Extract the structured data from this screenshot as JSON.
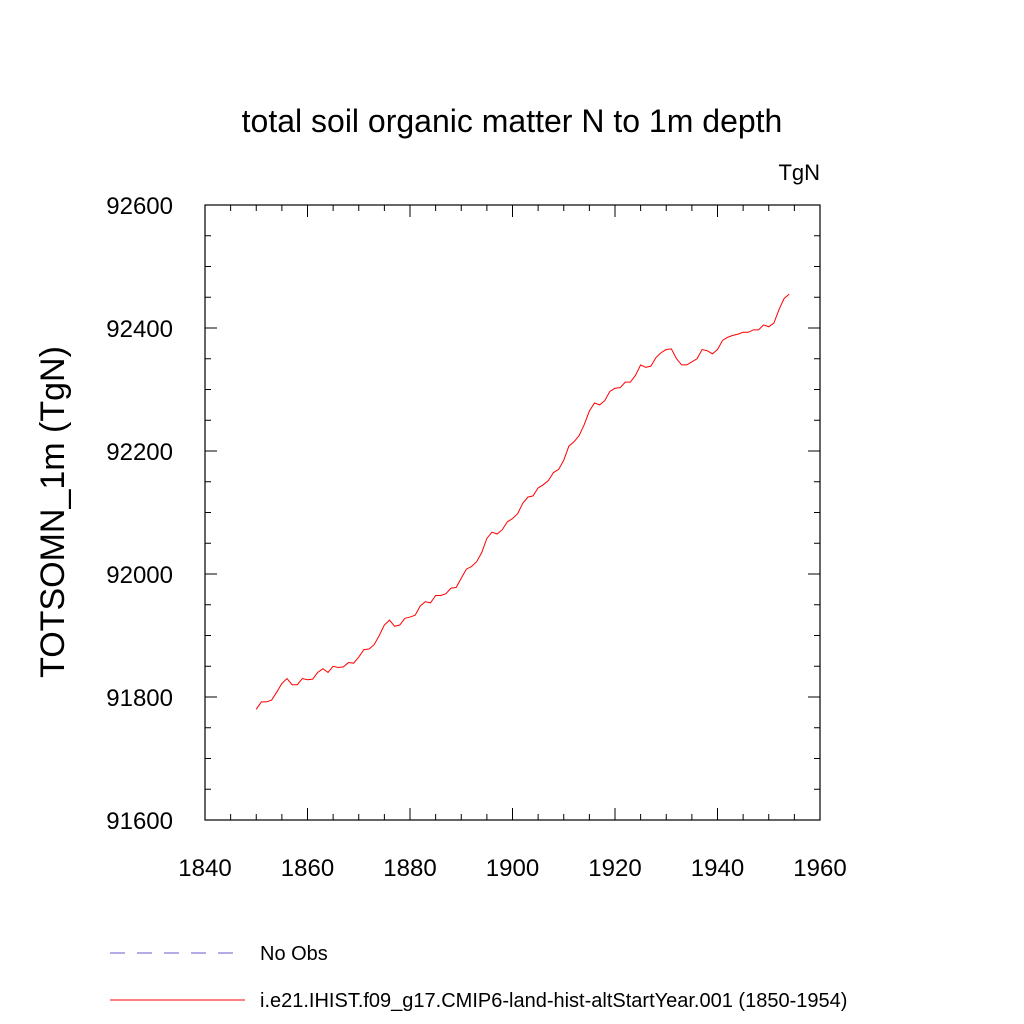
{
  "chart_data": {
    "type": "line",
    "title": "total soil organic matter N to 1m depth",
    "units": "TgN",
    "xlabel": "",
    "ylabel": "TOTSOMN_1m  (TgN)",
    "xlim": [
      1840,
      1960
    ],
    "ylim": [
      91600,
      92600
    ],
    "xticks": [
      1840,
      1860,
      1880,
      1900,
      1920,
      1940,
      1960
    ],
    "yticks": [
      91600,
      91800,
      92000,
      92200,
      92400,
      92600
    ],
    "grid": false,
    "legend_position": "bottom",
    "series": [
      {
        "name": "No Obs",
        "color": "#6a5acd",
        "style": "dashed",
        "x": [],
        "y": []
      },
      {
        "name": "i.e21.IHIST.f09_g17.CMIP6-land-hist-altStartYear.001 (1850-1954)",
        "color": "#ff0000",
        "style": "solid",
        "x": [
          1850,
          1851,
          1852,
          1853,
          1854,
          1855,
          1856,
          1857,
          1858,
          1859,
          1860,
          1861,
          1862,
          1863,
          1864,
          1865,
          1866,
          1867,
          1868,
          1869,
          1870,
          1871,
          1872,
          1873,
          1874,
          1875,
          1876,
          1877,
          1878,
          1879,
          1880,
          1881,
          1882,
          1883,
          1884,
          1885,
          1886,
          1887,
          1888,
          1889,
          1890,
          1891,
          1892,
          1893,
          1894,
          1895,
          1896,
          1897,
          1898,
          1899,
          1900,
          1901,
          1902,
          1903,
          1904,
          1905,
          1906,
          1907,
          1908,
          1909,
          1910,
          1911,
          1912,
          1913,
          1914,
          1915,
          1916,
          1917,
          1918,
          1919,
          1920,
          1921,
          1922,
          1923,
          1924,
          1925,
          1926,
          1927,
          1928,
          1929,
          1930,
          1931,
          1932,
          1933,
          1934,
          1935,
          1936,
          1937,
          1938,
          1939,
          1940,
          1941,
          1942,
          1943,
          1944,
          1945,
          1946,
          1947,
          1948,
          1949,
          1950,
          1951,
          1952,
          1953,
          1954
        ],
        "y": [
          91780,
          91792,
          91792,
          91795,
          91808,
          91822,
          91830,
          91820,
          91820,
          91830,
          91828,
          91829,
          91840,
          91846,
          91840,
          91850,
          91848,
          91849,
          91856,
          91855,
          91865,
          91877,
          91878,
          91885,
          91900,
          91917,
          91925,
          91915,
          91917,
          91928,
          91930,
          91933,
          91948,
          91955,
          91953,
          91965,
          91965,
          91968,
          91977,
          91978,
          91993,
          92008,
          92012,
          92020,
          92035,
          92058,
          92068,
          92065,
          92072,
          92085,
          92090,
          92098,
          92115,
          92125,
          92127,
          92140,
          92145,
          92152,
          92165,
          92170,
          92185,
          92208,
          92215,
          92225,
          92243,
          92265,
          92278,
          92275,
          92282,
          92297,
          92302,
          92303,
          92312,
          92312,
          92323,
          92340,
          92336,
          92338,
          92352,
          92360,
          92365,
          92366,
          92350,
          92340,
          92340,
          92345,
          92350,
          92365,
          92363,
          92358,
          92365,
          92380,
          92385,
          92388,
          92390,
          92393,
          92393,
          92397,
          92397,
          92405,
          92402,
          92408,
          92430,
          92448,
          92455
        ]
      }
    ]
  }
}
